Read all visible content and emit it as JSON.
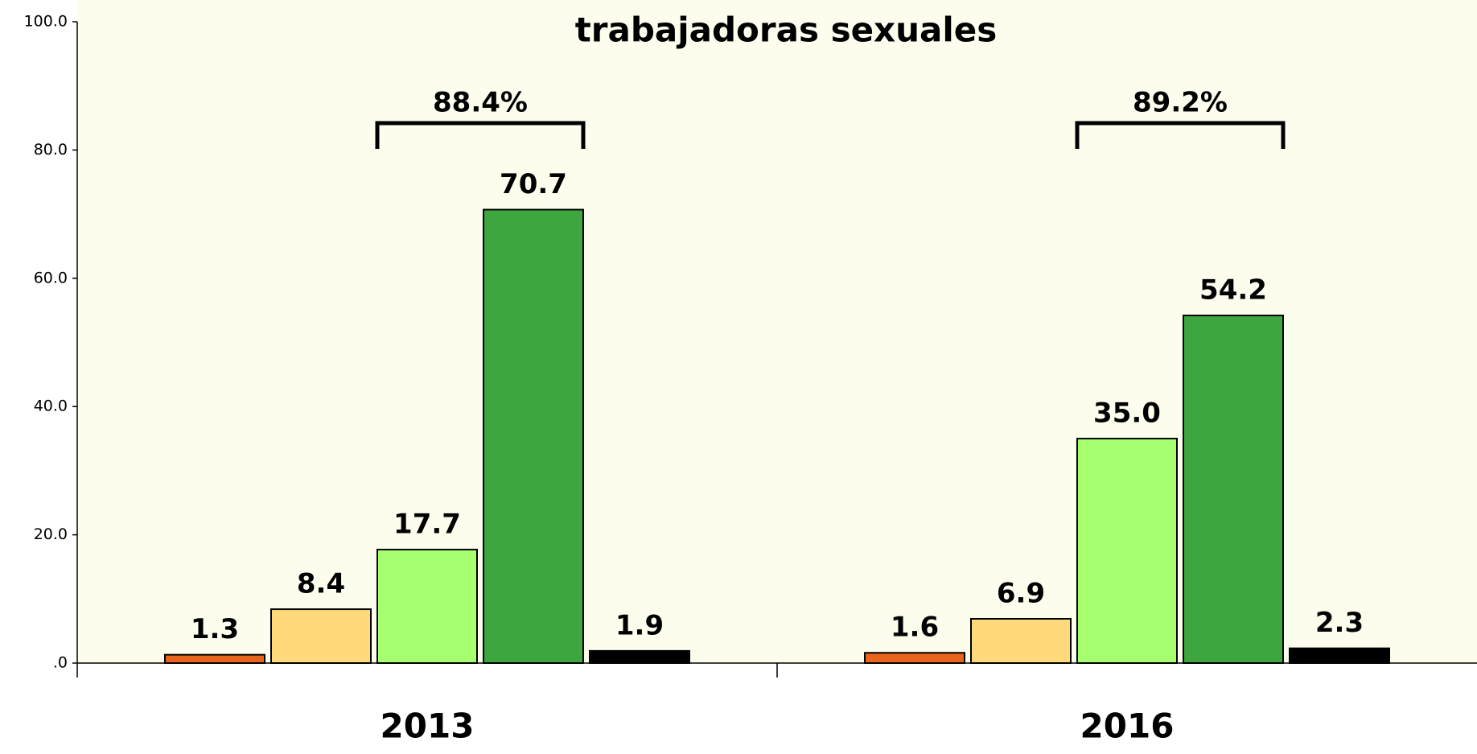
{
  "chart_data": {
    "type": "bar",
    "title": "trabajadoras sexuales",
    "categories": [
      "2013",
      "2016"
    ],
    "series": [
      {
        "color": "#e8641c",
        "values": [
          1.3,
          1.6
        ]
      },
      {
        "color": "#ffd97a",
        "values": [
          8.4,
          6.9
        ]
      },
      {
        "color": "#a6ff6e",
        "values": [
          17.7,
          35.0
        ],
        "value_labels": [
          "17.7",
          "35.0"
        ]
      },
      {
        "color": "#3ea63e",
        "values": [
          70.7,
          54.2
        ]
      },
      {
        "color": "#000000",
        "values": [
          1.9,
          2.3
        ]
      }
    ],
    "annotations": [
      {
        "value": 88.4,
        "label": "88.4%"
      },
      {
        "value": 89.2,
        "label": "89.2%"
      }
    ],
    "ylim": [
      0,
      100
    ],
    "yticks": [
      {
        "value": 0,
        "label": ".0"
      },
      {
        "value": 20,
        "label": "20.0"
      },
      {
        "value": 40,
        "label": "40.0"
      },
      {
        "value": 60,
        "label": "60.0"
      },
      {
        "value": 80,
        "label": "80.0"
      },
      {
        "value": 100,
        "label": "100.0"
      }
    ],
    "grid": false
  }
}
